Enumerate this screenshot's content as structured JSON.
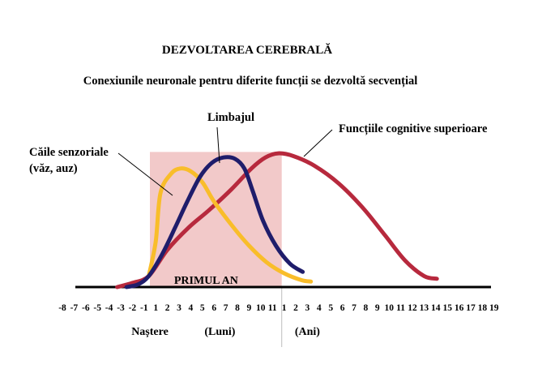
{
  "chart_data": {
    "type": "line",
    "title": "DEZVOLTAREA CEREBRALĂ",
    "subtitle": "Conexiunile neuronale pentru diferite funcții se dezvoltă secvențial",
    "x_ticks": [
      {
        "label": "-8",
        "pos": -8
      },
      {
        "label": "-7",
        "pos": -7
      },
      {
        "label": "-6",
        "pos": -6
      },
      {
        "label": "-5",
        "pos": -5
      },
      {
        "label": "-4",
        "pos": -4
      },
      {
        "label": "-3",
        "pos": -3
      },
      {
        "label": "-2",
        "pos": -2
      },
      {
        "label": "-1",
        "pos": -1
      },
      {
        "label": "1",
        "pos": 0
      },
      {
        "label": "2",
        "pos": 1
      },
      {
        "label": "3",
        "pos": 2
      },
      {
        "label": "4",
        "pos": 3
      },
      {
        "label": "5",
        "pos": 4
      },
      {
        "label": "6",
        "pos": 5
      },
      {
        "label": "7",
        "pos": 6
      },
      {
        "label": "8",
        "pos": 7
      },
      {
        "label": "9",
        "pos": 8
      },
      {
        "label": "10",
        "pos": 9
      },
      {
        "label": "11",
        "pos": 10
      },
      {
        "label": "1",
        "pos": 11
      },
      {
        "label": "2",
        "pos": 12
      },
      {
        "label": "3",
        "pos": 13
      },
      {
        "label": "4",
        "pos": 14
      },
      {
        "label": "5",
        "pos": 15
      },
      {
        "label": "6",
        "pos": 16
      },
      {
        "label": "7",
        "pos": 17
      },
      {
        "label": "8",
        "pos": 18
      },
      {
        "label": "9",
        "pos": 19
      },
      {
        "label": "10",
        "pos": 20
      },
      {
        "label": "11",
        "pos": 21
      },
      {
        "label": "12",
        "pos": 22
      },
      {
        "label": "13",
        "pos": 23
      },
      {
        "label": "14",
        "pos": 24
      },
      {
        "label": "15",
        "pos": 25
      },
      {
        "label": "16",
        "pos": 26
      },
      {
        "label": "17",
        "pos": 27
      },
      {
        "label": "18",
        "pos": 28
      },
      {
        "label": "19",
        "pos": 29
      }
    ],
    "xlim": [
      -8,
      29
    ],
    "ylim": [
      0,
      1
    ],
    "shaded_region": {
      "label": "PRIMUL AN",
      "x_range": [
        -0.5,
        10.8
      ],
      "top": 0.98,
      "color": "#f2c9c9"
    },
    "annotations": [
      {
        "text": "Naștere",
        "at_x": -0.5
      },
      {
        "text": "(Luni)",
        "at_x": 5.5
      },
      {
        "text": "(Ani)",
        "at_x": 13
      }
    ],
    "series": [
      {
        "name": "Căile senzoriale",
        "name_line2": "(văz, auz)",
        "color": "#f9bd2a",
        "points": [
          [
            -0.6,
            0.08
          ],
          [
            0,
            0.33
          ],
          [
            0.4,
            0.68
          ],
          [
            1.3,
            0.82
          ],
          [
            2.1,
            0.86
          ],
          [
            3,
            0.84
          ],
          [
            4,
            0.76
          ],
          [
            5,
            0.62
          ],
          [
            6.5,
            0.45
          ],
          [
            8,
            0.3
          ],
          [
            9.5,
            0.18
          ],
          [
            11,
            0.1
          ],
          [
            12.5,
            0.05
          ],
          [
            13.3,
            0.04
          ]
        ]
      },
      {
        "name": "Limbajul",
        "color": "#1f1d6b",
        "points": [
          [
            -2.5,
            0
          ],
          [
            -1.5,
            0.02
          ],
          [
            -0.6,
            0.08
          ],
          [
            0.5,
            0.23
          ],
          [
            1.6,
            0.42
          ],
          [
            2.7,
            0.62
          ],
          [
            3.8,
            0.8
          ],
          [
            4.8,
            0.9
          ],
          [
            5.8,
            0.94
          ],
          [
            6.8,
            0.93
          ],
          [
            7.6,
            0.86
          ],
          [
            8.3,
            0.7
          ],
          [
            9.2,
            0.48
          ],
          [
            10.3,
            0.3
          ],
          [
            11.5,
            0.17
          ],
          [
            12.6,
            0.11
          ]
        ]
      },
      {
        "name": "Funcțiile cognitive superioare",
        "color": "#b7293d",
        "points": [
          [
            -3.3,
            0
          ],
          [
            -2,
            0.03
          ],
          [
            -0.6,
            0.08
          ],
          [
            1,
            0.27
          ],
          [
            2.8,
            0.43
          ],
          [
            4.6,
            0.56
          ],
          [
            6.5,
            0.71
          ],
          [
            8.2,
            0.86
          ],
          [
            9.4,
            0.94
          ],
          [
            10.5,
            0.97
          ],
          [
            11.8,
            0.95
          ],
          [
            13.6,
            0.88
          ],
          [
            15.7,
            0.75
          ],
          [
            17.8,
            0.57
          ],
          [
            19.7,
            0.37
          ],
          [
            21.4,
            0.19
          ],
          [
            23,
            0.08
          ],
          [
            24.1,
            0.06
          ]
        ]
      }
    ]
  }
}
